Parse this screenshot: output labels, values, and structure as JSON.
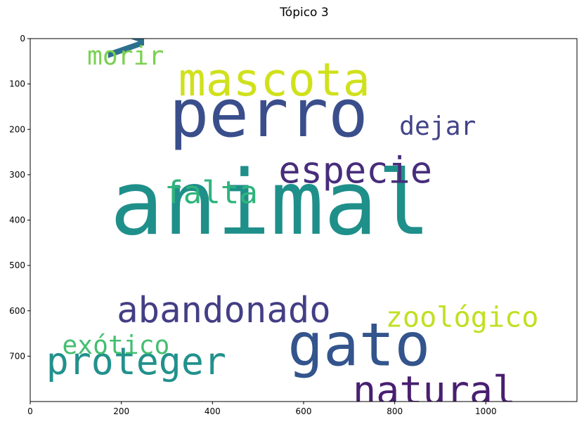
{
  "chart_data": {
    "type": "wordcloud",
    "title": "Tópico 3",
    "xlim": [
      0,
      1200
    ],
    "ylim": [
      800,
      0
    ],
    "xticks": [
      0,
      200,
      400,
      600,
      800,
      1000
    ],
    "yticks": [
      0,
      100,
      200,
      300,
      400,
      500,
      600,
      700
    ],
    "words": [
      {
        "text": "animal",
        "x": 175,
        "y": 430,
        "size": 195,
        "rotate": 0,
        "color": "#1f8f8a"
      },
      {
        "text": "perro",
        "x": 305,
        "y": 215,
        "size": 145,
        "rotate": 0,
        "color": "#3a4e8c"
      },
      {
        "text": "vida",
        "x": 250,
        "y": 50,
        "size": 145,
        "rotate": -90,
        "color": "#2c708e"
      },
      {
        "text": "gato",
        "x": 565,
        "y": 720,
        "size": 130,
        "rotate": 0,
        "color": "#33548c"
      },
      {
        "text": "mascota",
        "x": 325,
        "y": 125,
        "size": 100,
        "rotate": 0,
        "color": "#d0e11c"
      },
      {
        "text": "especie",
        "x": 545,
        "y": 318,
        "size": 80,
        "rotate": 0,
        "color": "#472d7b"
      },
      {
        "text": "abandonado",
        "x": 190,
        "y": 625,
        "size": 78,
        "rotate": 0,
        "color": "#433e85"
      },
      {
        "text": "proteger",
        "x": 35,
        "y": 740,
        "size": 82,
        "rotate": 0,
        "color": "#21918c"
      },
      {
        "text": "natural",
        "x": 708,
        "y": 805,
        "size": 85,
        "rotate": 0,
        "color": "#481f70"
      },
      {
        "text": "falta",
        "x": 295,
        "y": 363,
        "size": 68,
        "rotate": 0,
        "color": "#2fb47c"
      },
      {
        "text": "zoológico",
        "x": 780,
        "y": 635,
        "size": 62,
        "rotate": 0,
        "color": "#c2df23"
      },
      {
        "text": "exótico",
        "x": 70,
        "y": 695,
        "size": 56,
        "rotate": 0,
        "color": "#44bf70"
      },
      {
        "text": "dejar",
        "x": 810,
        "y": 212,
        "size": 56,
        "rotate": 0,
        "color": "#414487"
      },
      {
        "text": "morir",
        "x": 125,
        "y": 57,
        "size": 56,
        "rotate": 0,
        "color": "#7ad151"
      }
    ]
  }
}
